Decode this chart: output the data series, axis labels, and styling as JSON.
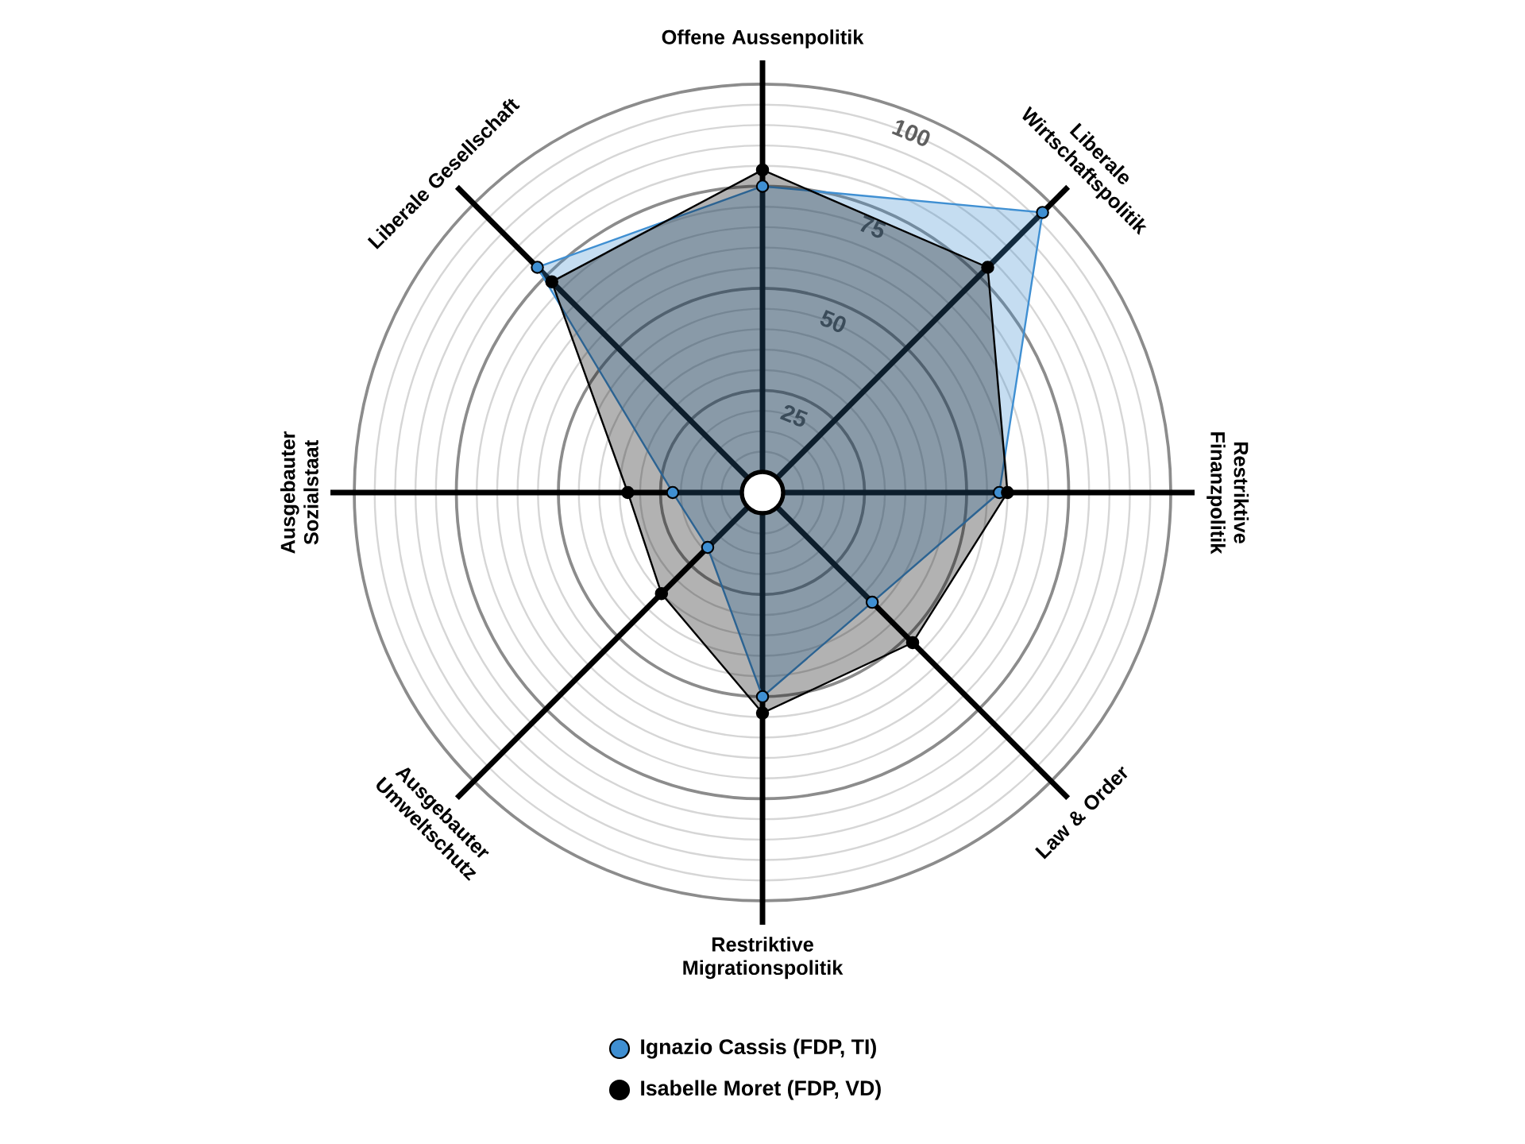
{
  "chart_data": {
    "type": "radar",
    "categories": [
      "Offene Aussenpolitik",
      "Liberale Wirtschaftspolitik",
      "Restriktive Finanzpolitik",
      "Law & Order",
      "Restriktive Migrationspolitik",
      "Ausgebauter Umweltschutz",
      "Ausgebauter Sozialstaat",
      "Liberale Gesellschaft"
    ],
    "series": [
      {
        "name": "Ignazio Cassis (FDP, TI)",
        "color": "#3f8fd2",
        "values": [
          75,
          97,
          58,
          38,
          50,
          19,
          22,
          78
        ]
      },
      {
        "name": "Isabelle Moret (FDP, VD)",
        "color": "#000000",
        "values": [
          79,
          78,
          60,
          52,
          54,
          35,
          33,
          73
        ]
      }
    ],
    "ylim": [
      0,
      100
    ],
    "yticks": [
      25,
      50,
      75,
      100
    ],
    "grid": true,
    "legend": "bottom",
    "marker": "circle"
  }
}
